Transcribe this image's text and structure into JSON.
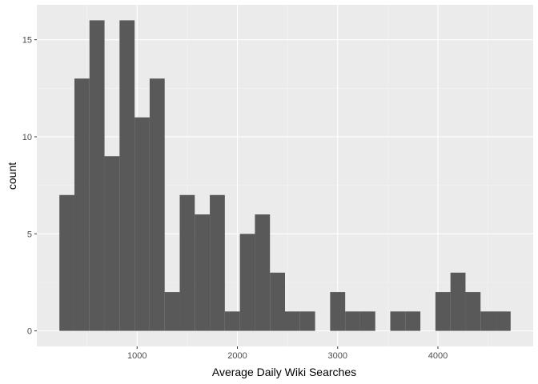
{
  "chart_data": {
    "type": "bar",
    "subtype": "histogram",
    "title": "",
    "xlabel": "Average Daily Wiki Searches",
    "ylabel": "count",
    "bin_width": 150,
    "bin_start": 225,
    "bins": [
      {
        "x0": 225,
        "x1": 375,
        "count": 7
      },
      {
        "x0": 375,
        "x1": 525,
        "count": 13
      },
      {
        "x0": 525,
        "x1": 675,
        "count": 16
      },
      {
        "x0": 675,
        "x1": 825,
        "count": 9
      },
      {
        "x0": 825,
        "x1": 975,
        "count": 16
      },
      {
        "x0": 975,
        "x1": 1125,
        "count": 11
      },
      {
        "x0": 1125,
        "x1": 1275,
        "count": 13
      },
      {
        "x0": 1275,
        "x1": 1425,
        "count": 2
      },
      {
        "x0": 1425,
        "x1": 1575,
        "count": 7
      },
      {
        "x0": 1575,
        "x1": 1725,
        "count": 6
      },
      {
        "x0": 1725,
        "x1": 1875,
        "count": 7
      },
      {
        "x0": 1875,
        "x1": 2025,
        "count": 1
      },
      {
        "x0": 2025,
        "x1": 2175,
        "count": 5
      },
      {
        "x0": 2175,
        "x1": 2325,
        "count": 6
      },
      {
        "x0": 2325,
        "x1": 2475,
        "count": 3
      },
      {
        "x0": 2475,
        "x1": 2625,
        "count": 1
      },
      {
        "x0": 2625,
        "x1": 2775,
        "count": 1
      },
      {
        "x0": 2775,
        "x1": 2925,
        "count": 0
      },
      {
        "x0": 2925,
        "x1": 3075,
        "count": 2
      },
      {
        "x0": 3075,
        "x1": 3225,
        "count": 1
      },
      {
        "x0": 3225,
        "x1": 3375,
        "count": 1
      },
      {
        "x0": 3375,
        "x1": 3525,
        "count": 0
      },
      {
        "x0": 3525,
        "x1": 3675,
        "count": 1
      },
      {
        "x0": 3675,
        "x1": 3825,
        "count": 1
      },
      {
        "x0": 3825,
        "x1": 3975,
        "count": 0
      },
      {
        "x0": 3975,
        "x1": 4125,
        "count": 2
      },
      {
        "x0": 4125,
        "x1": 4275,
        "count": 3
      },
      {
        "x0": 4275,
        "x1": 4425,
        "count": 2
      },
      {
        "x0": 4425,
        "x1": 4575,
        "count": 1
      },
      {
        "x0": 4575,
        "x1": 4725,
        "count": 1
      }
    ],
    "xlim": [
      0,
      4950
    ],
    "ylim": [
      -0.8,
      16.8
    ],
    "x_ticks": [
      1000,
      2000,
      3000,
      4000
    ],
    "x_minor_ticks": [
      500,
      1500,
      2500,
      3500,
      4500
    ],
    "y_ticks": [
      0,
      5,
      10,
      15
    ],
    "y_minor_ticks": [
      2.5,
      7.5,
      12.5
    ],
    "x_tick_labels": [
      "1000",
      "2000",
      "3000",
      "4000"
    ],
    "y_tick_labels": [
      "0",
      "5",
      "10",
      "15"
    ],
    "grid": true,
    "legend": "none",
    "colors": {
      "panel_background": "#ebebeb",
      "grid_major": "#ffffff",
      "grid_minor": "#f5f5f5",
      "bar_fill": "#595959",
      "tick_label": "#4d4d4d",
      "tick_mark": "#333333"
    }
  }
}
